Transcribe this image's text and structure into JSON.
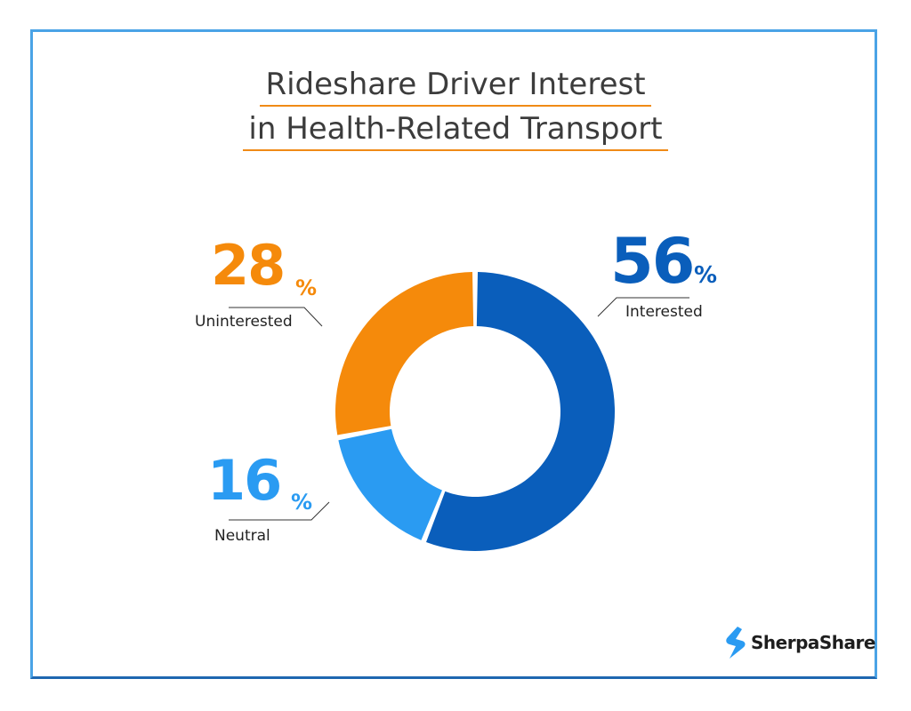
{
  "title_lines": [
    "Rideshare Driver Interest",
    "in Health-Related Transport"
  ],
  "chart_data": {
    "type": "pie",
    "donut": true,
    "slices": [
      {
        "label": "Interested",
        "value": 56,
        "display": "56",
        "color": "#0a5ebb"
      },
      {
        "label": "Neutral",
        "value": 16,
        "display": "16",
        "color": "#2a9bf2"
      },
      {
        "label": "Uninterested",
        "value": 28,
        "display": "28",
        "color": "#f58a0b"
      }
    ],
    "unit": "%"
  },
  "brand": {
    "name": "SherpaShare",
    "icon": "sherpashare-logo-icon",
    "icon_color": "#2a9bf2"
  }
}
